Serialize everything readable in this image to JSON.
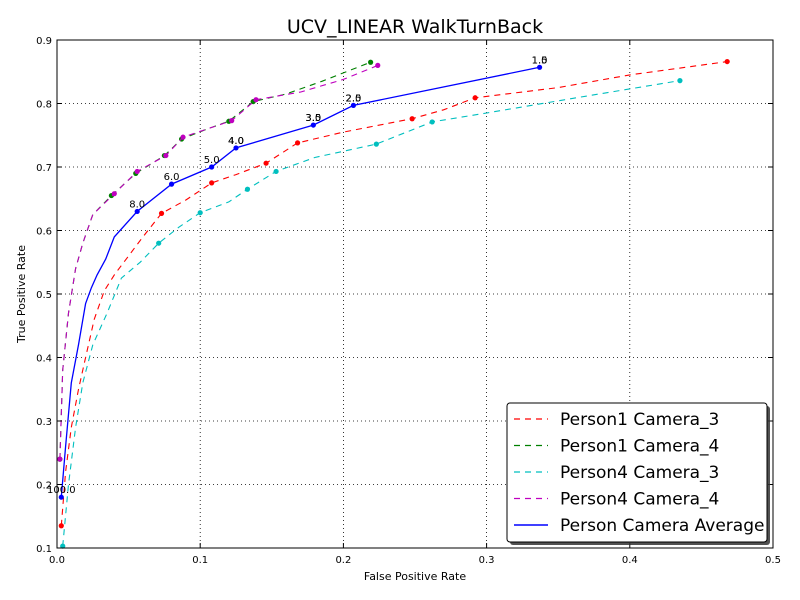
{
  "chart_data": {
    "type": "line",
    "title": "UCV_LINEAR WalkTurnBack",
    "xlabel": "False Positive Rate",
    "ylabel": "True Positive Rate",
    "xlim": [
      0.0,
      0.5
    ],
    "ylim": [
      0.1,
      0.9
    ],
    "xticks": [
      "0.0",
      "0.1",
      "0.2",
      "0.3",
      "0.4",
      "0.5"
    ],
    "yticks": [
      "0.1",
      "0.2",
      "0.3",
      "0.4",
      "0.5",
      "0.6",
      "0.7",
      "0.8",
      "0.9"
    ],
    "grid": true,
    "legend_position": "bottom-right",
    "series": [
      {
        "name": "Person1 Camera_3",
        "color": "#ff0000",
        "dash": true,
        "x": [
          0.003,
          0.006,
          0.01,
          0.015,
          0.02,
          0.026,
          0.033,
          0.04,
          0.05,
          0.06,
          0.073,
          0.09,
          0.108,
          0.125,
          0.146,
          0.168,
          0.2,
          0.248,
          0.27,
          0.292,
          0.35,
          0.4,
          0.468
        ],
        "y": [
          0.135,
          0.22,
          0.29,
          0.35,
          0.4,
          0.46,
          0.505,
          0.53,
          0.56,
          0.59,
          0.627,
          0.648,
          0.675,
          0.688,
          0.706,
          0.738,
          0.755,
          0.776,
          0.79,
          0.809,
          0.825,
          0.845,
          0.866
        ],
        "marker_idx": [
          0,
          10,
          12,
          14,
          15,
          17,
          19,
          22
        ]
      },
      {
        "name": "Person1 Camera_4",
        "color": "#008000",
        "dash": true,
        "x": [
          0.002,
          0.004,
          0.008,
          0.013,
          0.018,
          0.025,
          0.038,
          0.055,
          0.075,
          0.087,
          0.105,
          0.12,
          0.137,
          0.16,
          0.185,
          0.219
        ],
        "y": [
          0.24,
          0.38,
          0.47,
          0.54,
          0.58,
          0.625,
          0.655,
          0.69,
          0.718,
          0.744,
          0.76,
          0.772,
          0.803,
          0.815,
          0.835,
          0.865
        ],
        "marker_idx": [
          0,
          6,
          7,
          8,
          9,
          11,
          12,
          15
        ]
      },
      {
        "name": "Person4 Camera_3",
        "color": "#00bfbf",
        "dash": true,
        "x": [
          0.004,
          0.008,
          0.013,
          0.018,
          0.025,
          0.035,
          0.045,
          0.058,
          0.071,
          0.085,
          0.1,
          0.12,
          0.133,
          0.153,
          0.18,
          0.223,
          0.262,
          0.3,
          0.36,
          0.435
        ],
        "y": [
          0.103,
          0.2,
          0.29,
          0.36,
          0.42,
          0.47,
          0.525,
          0.55,
          0.58,
          0.605,
          0.628,
          0.645,
          0.665,
          0.693,
          0.715,
          0.736,
          0.771,
          0.785,
          0.808,
          0.836
        ],
        "marker_idx": [
          0,
          8,
          10,
          12,
          13,
          15,
          16,
          19
        ]
      },
      {
        "name": "Person4 Camera_4",
        "color": "#bf00bf",
        "dash": true,
        "x": [
          0.002,
          0.004,
          0.008,
          0.013,
          0.018,
          0.025,
          0.04,
          0.056,
          0.076,
          0.088,
          0.105,
          0.122,
          0.139,
          0.17,
          0.2,
          0.224
        ],
        "y": [
          0.24,
          0.38,
          0.47,
          0.54,
          0.58,
          0.625,
          0.658,
          0.693,
          0.718,
          0.747,
          0.76,
          0.773,
          0.806,
          0.818,
          0.838,
          0.86
        ],
        "marker_idx": [
          0,
          6,
          7,
          8,
          9,
          11,
          12,
          15
        ]
      },
      {
        "name": "Person Camera Average",
        "color": "#0000ff",
        "dash": false,
        "x": [
          0.003,
          0.006,
          0.01,
          0.015,
          0.02,
          0.024,
          0.028,
          0.034,
          0.04,
          0.056,
          0.08,
          0.108,
          0.125,
          0.179,
          0.207,
          0.337
        ],
        "y": [
          0.18,
          0.26,
          0.36,
          0.42,
          0.485,
          0.51,
          0.53,
          0.555,
          0.59,
          0.63,
          0.673,
          0.7,
          0.73,
          0.766,
          0.797,
          0.857
        ],
        "marker_idx": [
          0,
          9,
          10,
          11,
          12,
          13,
          14,
          15
        ]
      }
    ],
    "annotations": [
      {
        "text": "100.0",
        "x": 0.003,
        "y": 0.18
      },
      {
        "text": "8.0",
        "x": 0.056,
        "y": 0.63
      },
      {
        "text": "6.0",
        "x": 0.08,
        "y": 0.673
      },
      {
        "text": "5.0",
        "x": 0.108,
        "y": 0.7
      },
      {
        "text": "4.0",
        "x": 0.125,
        "y": 0.73
      },
      {
        "text": "4.0",
        "x": 0.125,
        "y": 0.73
      },
      {
        "text": "3.0",
        "x": 0.179,
        "y": 0.766
      },
      {
        "text": "3.5",
        "x": 0.179,
        "y": 0.766
      },
      {
        "text": "2.0",
        "x": 0.207,
        "y": 0.797
      },
      {
        "text": "2.5",
        "x": 0.207,
        "y": 0.797
      },
      {
        "text": "1.0",
        "x": 0.337,
        "y": 0.857
      },
      {
        "text": "1.5",
        "x": 0.337,
        "y": 0.857
      }
    ]
  }
}
